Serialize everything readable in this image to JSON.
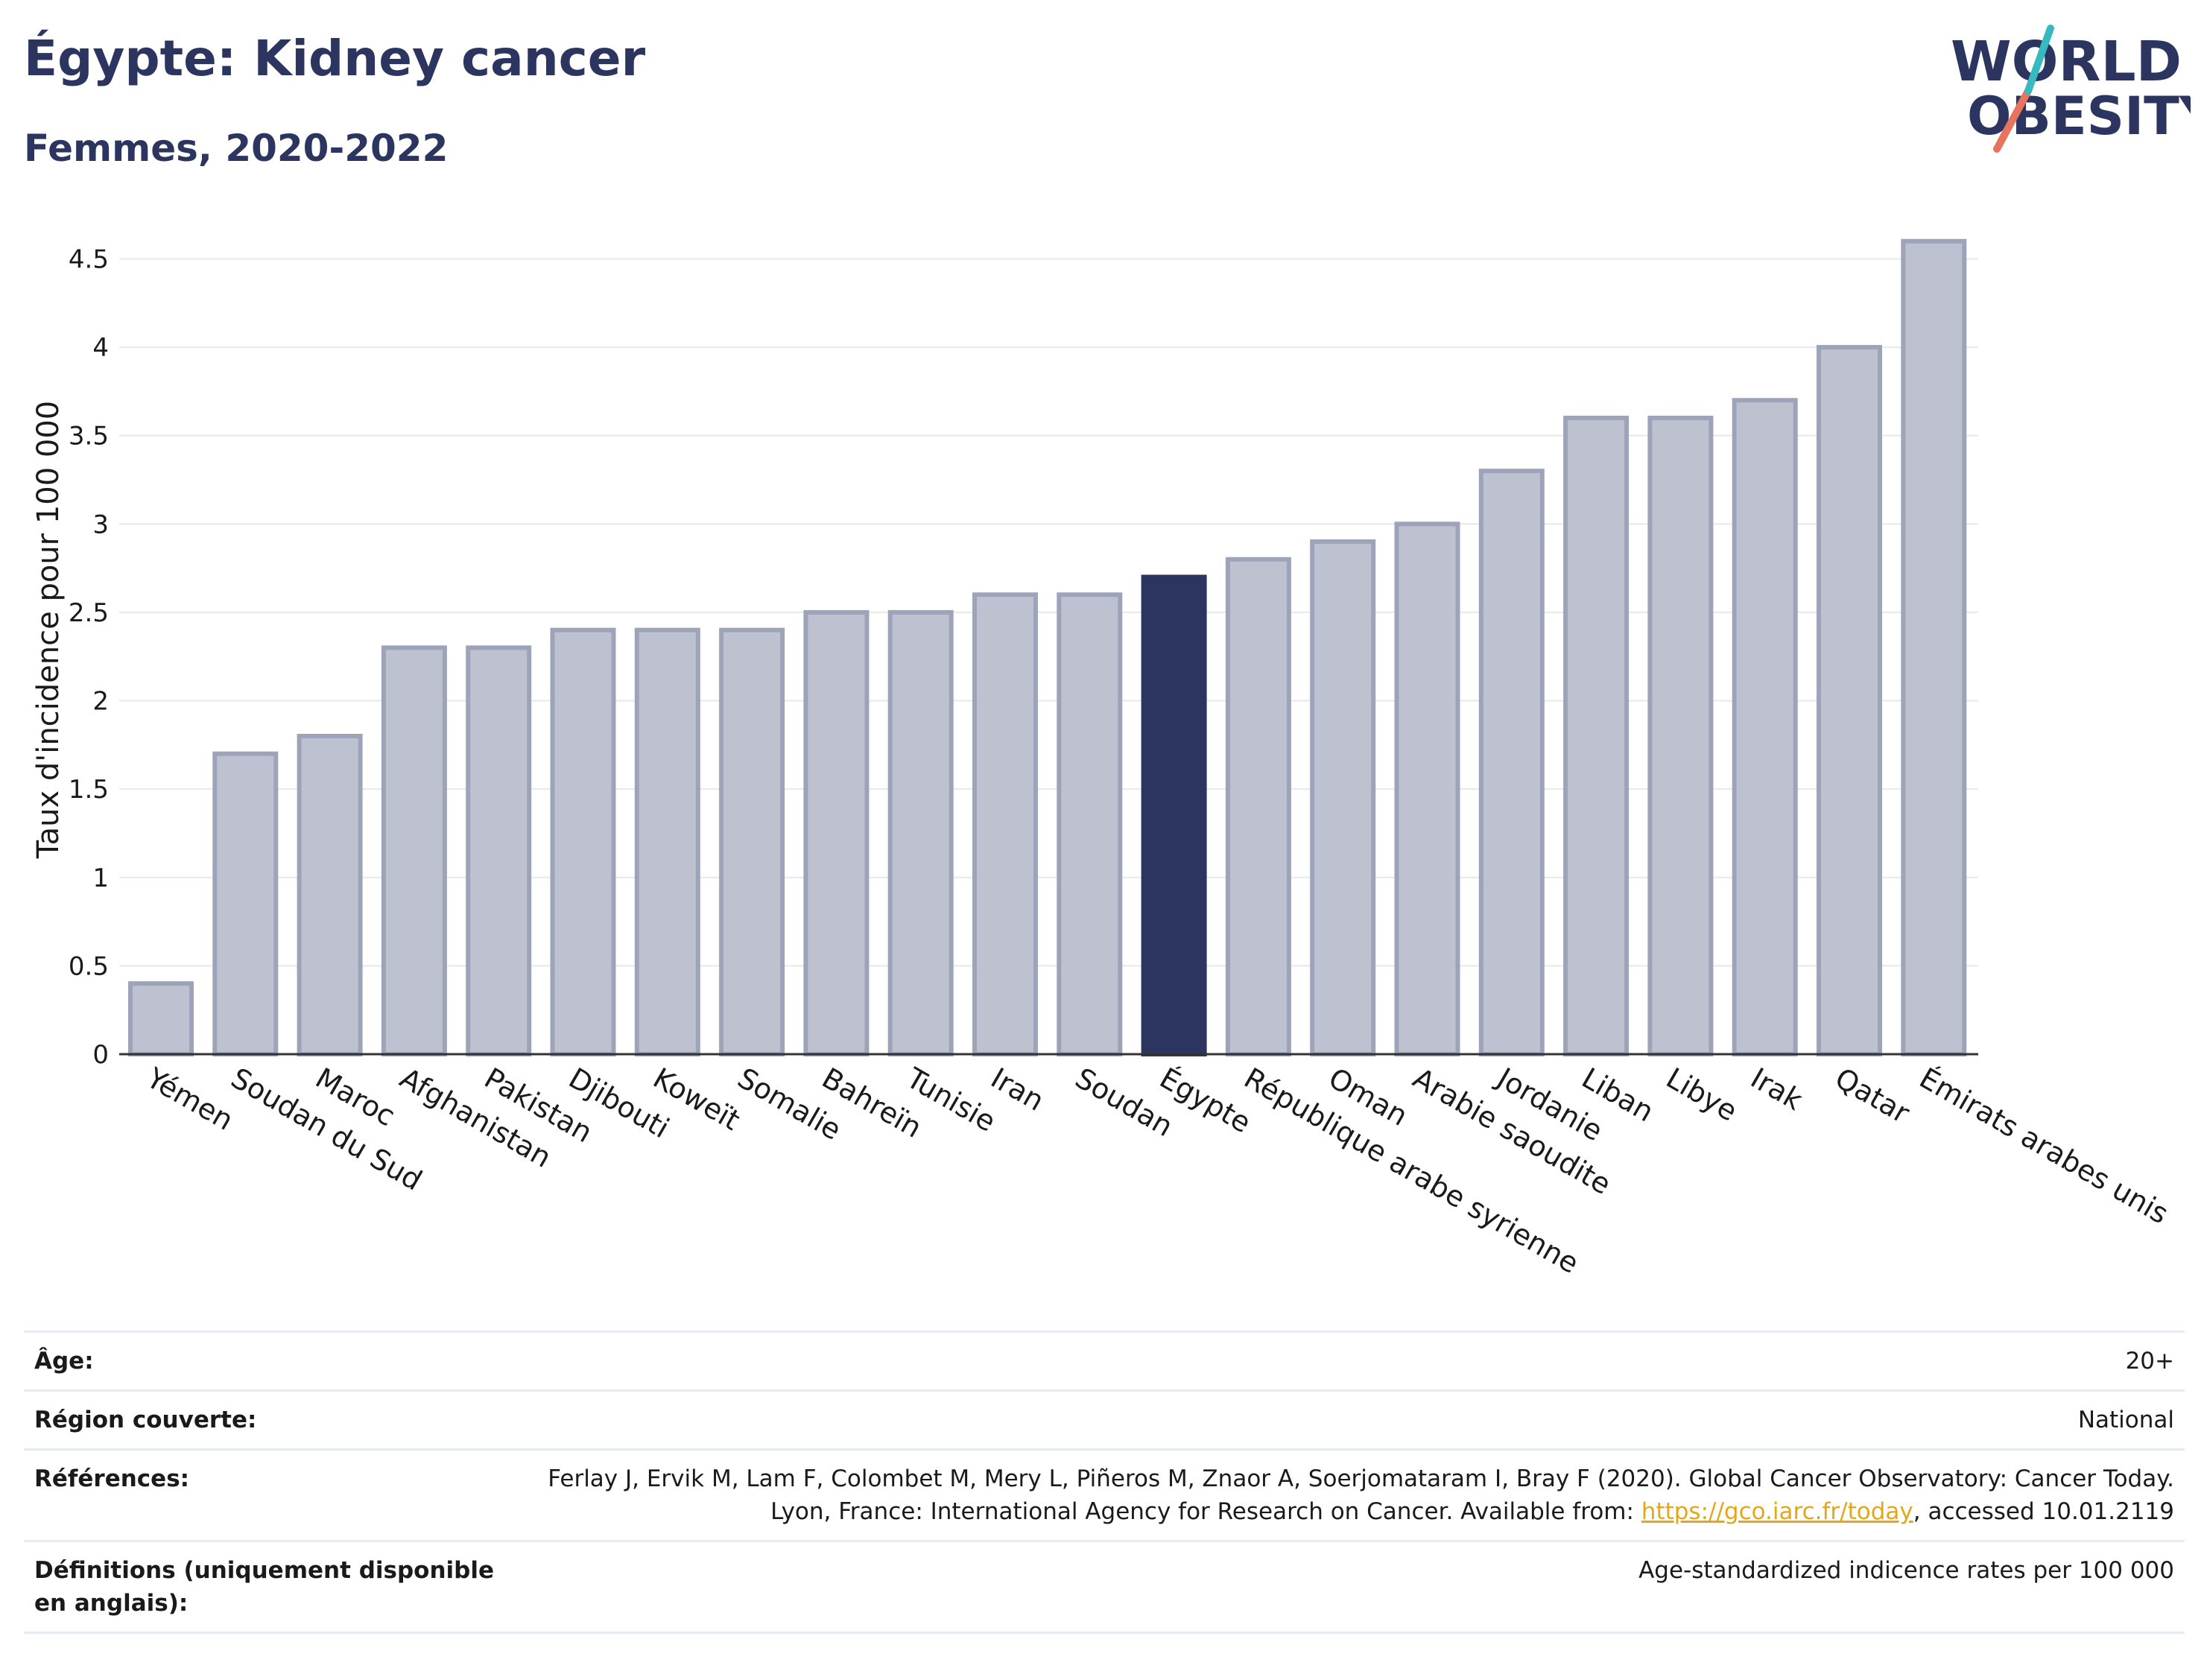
{
  "header": {
    "title": "Égypte: Kidney cancer",
    "subtitle": "Femmes, 2020-2022"
  },
  "logo": {
    "line1": "WORLD",
    "line2": "OBESITY"
  },
  "colors": {
    "highlight": "#2b3560",
    "bar_fill": "#bec2d0",
    "bar_stroke": "#9da3b9",
    "grid": "#e6e8ec",
    "axis": "#333333",
    "title": "#2b3560",
    "logo_teal": "#36b9bf",
    "logo_coral": "#e8735f",
    "link": "#e3a81a"
  },
  "chart_data": {
    "type": "bar",
    "title": "Égypte: Kidney cancer",
    "subtitle": "Femmes, 2020-2022",
    "xlabel": "",
    "ylabel": "Taux d'incidence pour 100 000",
    "ylim": [
      0,
      4.7
    ],
    "yticks": [
      0,
      0.5,
      1,
      1.5,
      2,
      2.5,
      3,
      3.5,
      4,
      4.5
    ],
    "ytick_labels": [
      "0",
      "0.5",
      "1",
      "1.5",
      "2",
      "2.5",
      "3",
      "3.5",
      "4",
      "4.5"
    ],
    "grid": true,
    "highlight": "Égypte",
    "categories": [
      "Yémen",
      "Soudan du Sud",
      "Maroc",
      "Afghanistan",
      "Pakistan",
      "Djibouti",
      "Koweït",
      "Somalie",
      "Bahreïn",
      "Tunisie",
      "Iran",
      "Soudan",
      "Égypte",
      "République arabe syrienne",
      "Oman",
      "Arabie saoudite",
      "Jordanie",
      "Liban",
      "Libye",
      "Irak",
      "Qatar",
      "Émirats arabes unis"
    ],
    "values": [
      0.4,
      1.7,
      1.8,
      2.3,
      2.3,
      2.4,
      2.4,
      2.4,
      2.5,
      2.5,
      2.6,
      2.6,
      2.7,
      2.8,
      2.9,
      3.0,
      3.3,
      3.6,
      3.6,
      3.7,
      4.0,
      4.6
    ]
  },
  "info": {
    "age_label": "Âge:",
    "age_value": "20+",
    "region_label": "Région couverte:",
    "region_value": "National",
    "refs_label": "Références:",
    "refs_text_1": "Ferlay J, Ervik M, Lam F, Colombet M, Mery L, Piñeros M, Znaor A, Soerjomataram I, Bray F (2020). Global Cancer Observatory: Cancer Today. Lyon, France: International Agency for Research on Cancer. Available from: ",
    "refs_link": "https://gco.iarc.fr/today",
    "refs_text_2": ", accessed 10.01.2119",
    "defs_label": "Définitions (uniquement disponible en anglais):",
    "defs_value": "Age-standardized indicence rates per 100 000"
  }
}
